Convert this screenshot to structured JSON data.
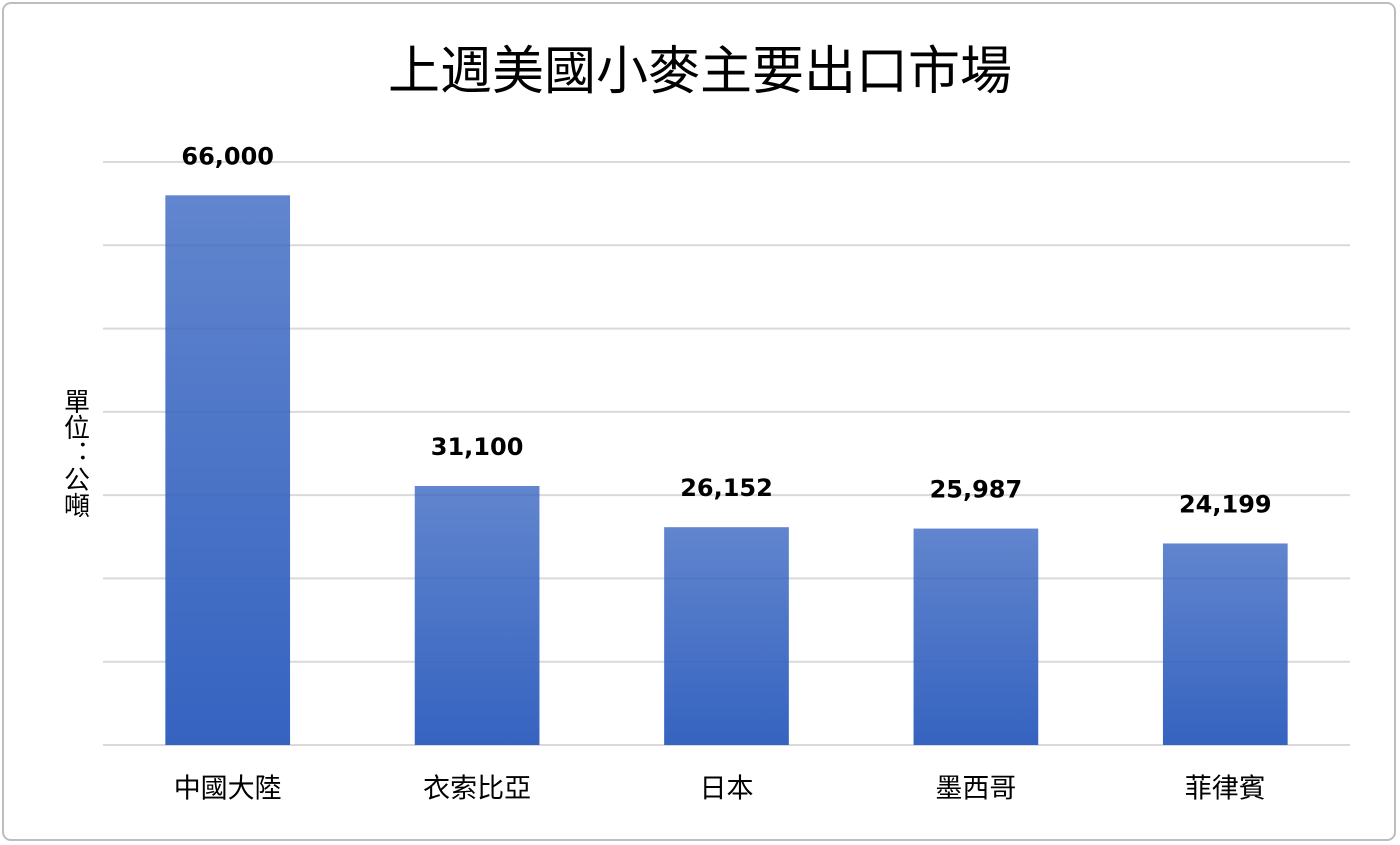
{
  "chart_data": {
    "type": "bar",
    "title": "上週美國小麥主要出口市場",
    "y_label": "單位：公噸",
    "categories": [
      "中國大陸",
      "衣索比亞",
      "日本",
      "墨西哥",
      "菲律賓"
    ],
    "values": [
      66000,
      31100,
      26152,
      25987,
      24199
    ],
    "value_labels": [
      "66,000",
      "31,100",
      "26,152",
      "25,987",
      "24,199"
    ],
    "color": "#3563c0",
    "ylim": [
      0,
      70000
    ],
    "yticks": [
      0,
      10000,
      20000,
      30000,
      40000,
      50000,
      60000,
      70000
    ],
    "grid": true
  }
}
